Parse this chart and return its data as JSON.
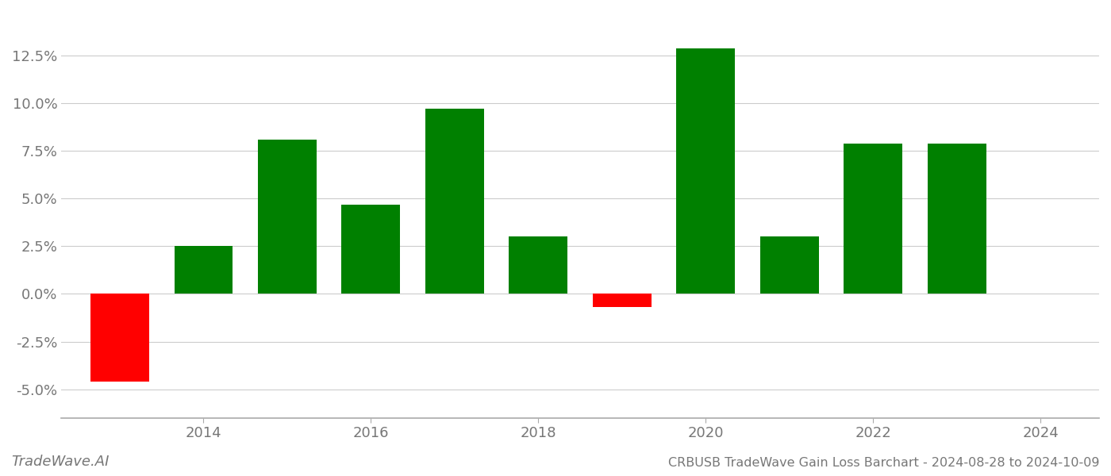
{
  "years": [
    2013,
    2014,
    2015,
    2016,
    2017,
    2018,
    2019,
    2020,
    2021,
    2022,
    2023
  ],
  "values": [
    -0.046,
    0.025,
    0.081,
    0.047,
    0.097,
    0.03,
    -0.007,
    0.129,
    0.03,
    0.079,
    0.079
  ],
  "positive_color": "#008000",
  "negative_color": "#ff0000",
  "background_color": "#ffffff",
  "grid_color": "#cccccc",
  "title": "CRBUSB TradeWave Gain Loss Barchart - 2024-08-28 to 2024-10-09",
  "watermark": "TradeWave.AI",
  "ylim_min": -0.065,
  "ylim_max": 0.148,
  "yticks": [
    -0.05,
    -0.025,
    0.0,
    0.025,
    0.05,
    0.075,
    0.1,
    0.125
  ],
  "xticks": [
    2014,
    2016,
    2018,
    2020,
    2022,
    2024
  ],
  "xlim_min": 2012.3,
  "xlim_max": 2024.7,
  "bar_width": 0.7,
  "title_fontsize": 11.5,
  "watermark_fontsize": 13,
  "tick_fontsize": 13,
  "axis_label_color": "#777777",
  "spine_color": "#aaaaaa"
}
